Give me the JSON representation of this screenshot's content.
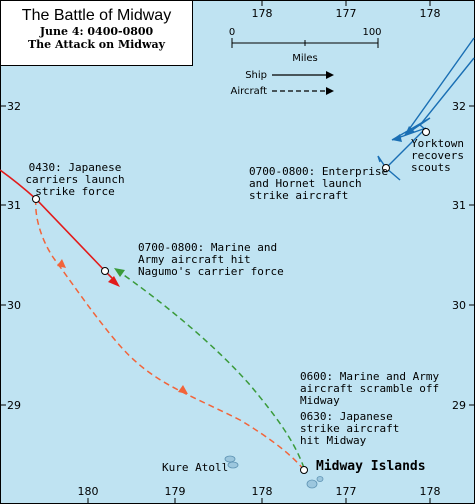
{
  "title": {
    "main": "The Battle of Midway",
    "line1": "June 4: 0400-0800",
    "line2": "The Attack on Midway"
  },
  "scale": {
    "start": "0",
    "end": "100",
    "unit": "Miles"
  },
  "legend": {
    "ship": "Ship",
    "aircraft": "Aircraft"
  },
  "axes": {
    "top_lon": [
      "178",
      "177",
      "178"
    ],
    "bottom_lon": [
      "180",
      "179",
      "178",
      "177",
      "178"
    ],
    "left_lat": [
      "32",
      "31",
      "30",
      "29"
    ],
    "right_lat": [
      "32",
      "31",
      "30",
      "29"
    ]
  },
  "labels": {
    "japanese_launch": [
      "0430: Japanese",
      "carriers launch",
      "strike force"
    ],
    "marine_hit": [
      "0700-0800: Marine and",
      "Army aircraft hit",
      "Nagumo's carrier force"
    ],
    "enterprise": [
      "0700-0800: Enterprise",
      "and Hornet launch",
      "strike aircraft"
    ],
    "yorktown": [
      "Yorktown",
      "recovers",
      "scouts"
    ],
    "scramble": [
      "0600: Marine and Army",
      "aircraft scramble off",
      "Midway"
    ],
    "japanese_hit": [
      "0630: Japanese",
      "strike aircraft",
      "hit Midway"
    ],
    "kure": "Kure Atoll",
    "midway": "Midway Islands"
  },
  "colors": {
    "sea": "#bfe3f2",
    "japanese_ship": "#e21b1b",
    "japanese_aircraft": "#f2643a",
    "us_aircraft": "#3a9a3a",
    "us_ship": "#1a6fb4"
  }
}
